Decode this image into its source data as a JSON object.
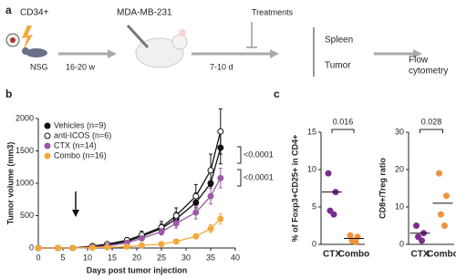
{
  "panel_a": {
    "panel": "a",
    "cells": "CD34+",
    "host": "NSG",
    "wait1": "16-20 w",
    "tumor_line": "MDA-MB-231",
    "wait2": "7-10 d",
    "treatments": "Treatments",
    "tissues": [
      "Spleen",
      "Tumor"
    ],
    "readout": [
      "Flow",
      "cytometry"
    ]
  },
  "chart_data": [
    {
      "type": "line",
      "panel": "b",
      "x_label": "Days post tumor injection",
      "y_label": "Tumor volume (mm3)",
      "x": [
        0,
        4,
        7,
        11,
        14,
        18,
        21,
        25,
        28,
        32,
        35,
        37
      ],
      "xlim": [
        0,
        40
      ],
      "xticks": [
        0,
        5,
        10,
        15,
        20,
        25,
        30,
        35,
        40
      ],
      "ylim": [
        0,
        2000
      ],
      "yticks": [
        0,
        500,
        1000,
        1500,
        2000
      ],
      "legend": "top-left",
      "annotations": [
        "<0.0001",
        "<0.0001"
      ],
      "series": [
        {
          "name": "Vehicles (n=9)",
          "color": "#111111",
          "marker": "filled",
          "values": [
            0,
            0,
            0,
            20,
            50,
            100,
            180,
            300,
            450,
            700,
            1000,
            1550
          ],
          "errors": [
            0,
            0,
            0,
            10,
            20,
            30,
            50,
            70,
            100,
            150,
            200,
            250
          ]
        },
        {
          "name": "anti-ICOS (n=6)",
          "color": "#111111",
          "marker": "open",
          "values": [
            0,
            0,
            0,
            30,
            60,
            120,
            200,
            320,
            500,
            800,
            1200,
            1800
          ],
          "errors": [
            0,
            0,
            0,
            10,
            20,
            40,
            60,
            90,
            120,
            180,
            250,
            350
          ]
        },
        {
          "name": "CTX (n=14)",
          "color": "#9b59a6",
          "marker": "filled",
          "values": [
            0,
            0,
            0,
            15,
            30,
            80,
            150,
            250,
            380,
            550,
            800,
            1080
          ],
          "errors": [
            0,
            0,
            0,
            5,
            10,
            20,
            30,
            50,
            70,
            100,
            120,
            150
          ]
        },
        {
          "name": "Combo (n=16)",
          "color": "#f2a93b",
          "marker": "filled",
          "values": [
            0,
            0,
            0,
            5,
            10,
            20,
            40,
            60,
            100,
            180,
            300,
            450
          ],
          "errors": [
            0,
            0,
            0,
            3,
            5,
            8,
            10,
            15,
            25,
            40,
            60,
            80
          ]
        }
      ]
    },
    {
      "type": "dot",
      "panel": "c",
      "y_label": "% of Foxp3+CD25+ in CD4+",
      "categories": [
        "CTX",
        "Combo"
      ],
      "colors": [
        "#7b2d8e",
        "#f0923a"
      ],
      "points": [
        [
          9.5,
          7,
          4.5,
          4
        ],
        [
          1.2,
          1,
          0.5,
          0.3
        ]
      ],
      "means": [
        7,
        0.8
      ],
      "ylim": [
        0,
        15
      ],
      "yticks": [
        0,
        5,
        10,
        15
      ],
      "significance": "0.016"
    },
    {
      "type": "dot",
      "y_label": "CD8+/Treg ratio",
      "categories": [
        "CTX",
        "Combo"
      ],
      "colors": [
        "#7b2d8e",
        "#f0923a"
      ],
      "points": [
        [
          5,
          3,
          2,
          1
        ],
        [
          19,
          13,
          8,
          5
        ]
      ],
      "means": [
        3,
        11
      ],
      "ylim": [
        0,
        30
      ],
      "yticks": [
        0,
        10,
        20,
        30
      ],
      "significance": "0.028"
    }
  ]
}
